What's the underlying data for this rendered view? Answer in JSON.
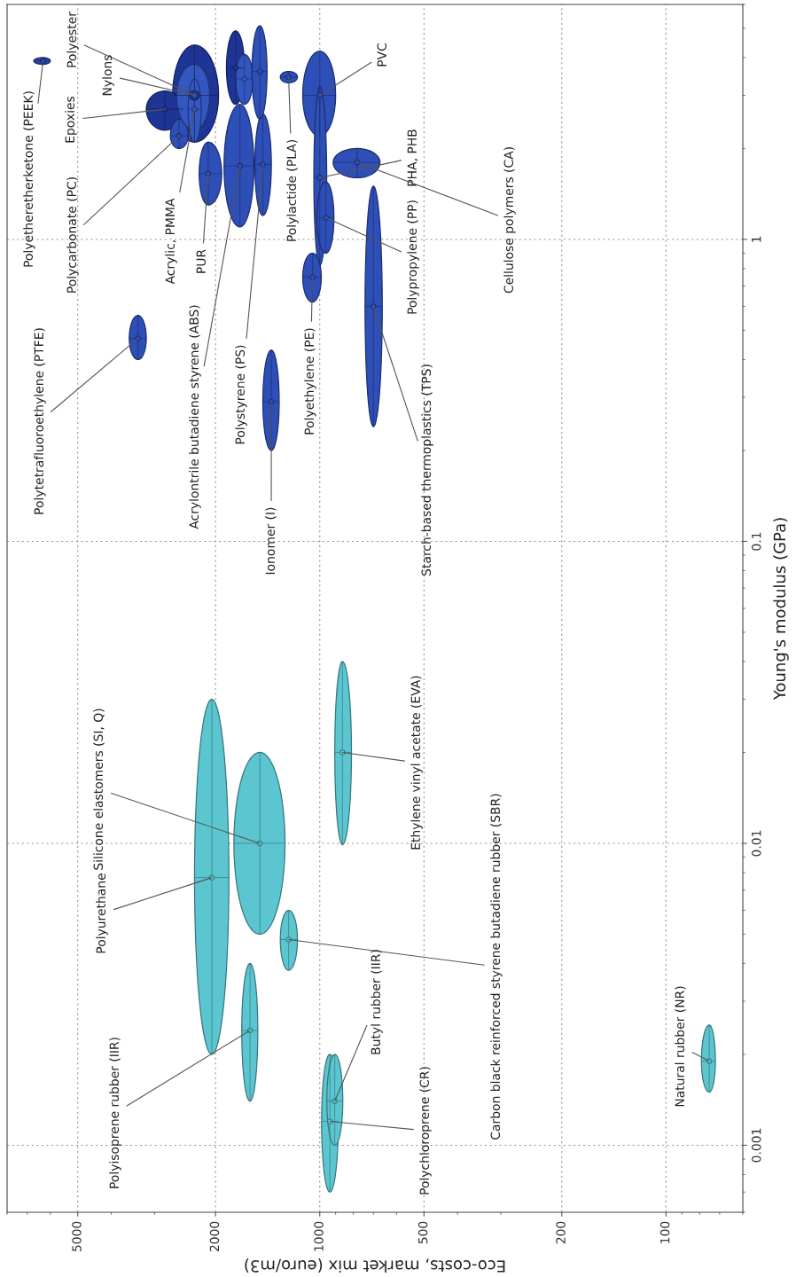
{
  "chart_data": {
    "type": "scatter",
    "xlabel": "Eco-costs, market mix (euro/m3)",
    "ylabel": "Young's modulus (GPa)",
    "log": "xy",
    "grid": true,
    "xlim": [
      8000,
      60
    ],
    "ylim": [
      0.0006,
      6
    ],
    "xticks": [
      5000,
      2000,
      1000,
      500,
      200,
      100
    ],
    "yticks": [
      0.001,
      0.01,
      0.1,
      1
    ],
    "x": [
      6300,
      2300,
      2800,
      2550,
      2300,
      2300,
      2100,
      1700,
      1460,
      1750,
      1650,
      1490,
      1230,
      1000,
      1000,
      960,
      780,
      700,
      1050,
      1380,
      3350,
      2050,
      1490,
      860,
      1230,
      1590,
      935,
      905,
      75
    ],
    "values": [
      3.9,
      3.0,
      2.7,
      2.2,
      3.0,
      2.7,
      1.65,
      1.75,
      1.77,
      3.7,
      3.4,
      3.6,
      3.45,
      3.0,
      1.6,
      1.18,
      1.8,
      0.6,
      0.75,
      0.29,
      0.47,
      0.0077,
      0.01,
      0.02,
      0.0048,
      0.0024,
      0.0012,
      0.0014,
      0.0019
    ],
    "xerrors": [
      [
        6000,
        6700
      ],
      [
        1960,
        2660
      ],
      [
        2480,
        3170
      ],
      [
        2400,
        2700
      ],
      [
        2080,
        2590
      ],
      [
        2200,
        2400
      ],
      [
        1920,
        2230
      ],
      [
        1550,
        1890
      ],
      [
        1380,
        1540
      ],
      [
        1650,
        1860
      ],
      [
        1560,
        1750
      ],
      [
        1420,
        1570
      ],
      [
        1160,
        1300
      ],
      [
        900,
        1120
      ],
      [
        955,
        1040
      ],
      [
        910,
        1020
      ],
      [
        670,
        915
      ],
      [
        660,
        740
      ],
      [
        990,
        1120
      ],
      [
        1310,
        1460
      ],
      [
        3170,
        3550
      ],
      [
        1830,
        2300
      ],
      [
        1260,
        1770
      ],
      [
        810,
        905
      ],
      [
        1160,
        1300
      ],
      [
        1510,
        1680
      ],
      [
        884,
        988
      ],
      [
        858,
        954
      ],
      [
        72,
        79
      ]
    ],
    "errors": [
      [
        3.8,
        4.0
      ],
      [
        2.1,
        4.4
      ],
      [
        2.3,
        3.1
      ],
      [
        2.0,
        2.5
      ],
      [
        2.3,
        3.8
      ],
      [
        2.1,
        3.4
      ],
      [
        1.3,
        2.1
      ],
      [
        1.1,
        2.8
      ],
      [
        1.2,
        2.6
      ],
      [
        2.8,
        4.9
      ],
      [
        2.8,
        4.1
      ],
      [
        2.5,
        5.1
      ],
      [
        3.3,
        3.6
      ],
      [
        2.2,
        4.2
      ],
      [
        0.82,
        3.2
      ],
      [
        0.9,
        1.55
      ],
      [
        1.6,
        2.0
      ],
      [
        0.24,
        1.5
      ],
      [
        0.62,
        0.9
      ],
      [
        0.2,
        0.43
      ],
      [
        0.4,
        0.56
      ],
      [
        0.002,
        0.03
      ],
      [
        0.005,
        0.02
      ],
      [
        0.0099,
        0.04
      ],
      [
        0.0038,
        0.006
      ],
      [
        0.0014,
        0.004
      ],
      [
        0.0007,
        0.002
      ],
      [
        0.001,
        0.002
      ],
      [
        0.0015,
        0.0025
      ]
    ],
    "colors": [
      "#2a47b0",
      "#1f3596",
      "#1f3596",
      "#2e4eb8",
      "#3356c0",
      "#3558c2",
      "#2e4eb8",
      "#2e4eb8",
      "#2e4eb8",
      "#1f3596",
      "#3356c0",
      "#2e4eb8",
      "#2e4eb8",
      "#2e4eb8",
      "#2e4eb8",
      "#2e4eb8",
      "#2e4eb8",
      "#2e4eb8",
      "#2e4eb8",
      "#2e4eb8",
      "#2e4eb8",
      "#5cc6d0",
      "#5cc6d0",
      "#5cc6d0",
      "#5cc6d0",
      "#5cc6d0",
      "#5cc6d0",
      "#5cc6d0",
      "#5cc6d0"
    ],
    "annotations": [
      {
        "text": "Polyetheretherketone (PEEK)",
        "x": 6300,
        "y": 3.9
      },
      {
        "text": "Polyester",
        "x": 2300,
        "y": 3.0
      },
      {
        "text": "Nylons",
        "x": 2300,
        "y": 3.0
      },
      {
        "text": "Epoxies",
        "x": 2800,
        "y": 2.7
      },
      {
        "text": "Polycarbonate (PC)",
        "x": 2550,
        "y": 2.2
      },
      {
        "text": "Acrylic, PMMA",
        "x": 2300,
        "y": 2.7
      },
      {
        "text": "PUR",
        "x": 2100,
        "y": 1.65
      },
      {
        "text": "Acrylontrile butadiene styrene (ABS)",
        "x": 1700,
        "y": 1.75
      },
      {
        "text": "Polystyrene (PS)",
        "x": 1460,
        "y": 1.77
      },
      {
        "text": "Polylactide (PLA)",
        "x": 1230,
        "y": 3.45
      },
      {
        "text": "PVC",
        "x": 1000,
        "y": 3.0
      },
      {
        "text": "PHA, PHB",
        "x": 1000,
        "y": 1.6
      },
      {
        "text": "Polypropylene (PP)",
        "x": 960,
        "y": 1.18
      },
      {
        "text": "Cellulose polymers (CA)",
        "x": 780,
        "y": 1.8
      },
      {
        "text": "Starch-based thermoplastics (TPS)",
        "x": 700,
        "y": 0.6
      },
      {
        "text": "Polyethylene (PE)",
        "x": 1050,
        "y": 0.75
      },
      {
        "text": "Ionomer (I)",
        "x": 1380,
        "y": 0.29
      },
      {
        "text": "Polytetrafluoroethylene (PTFE)",
        "x": 3350,
        "y": 0.47
      },
      {
        "text": "Polyurethane",
        "x": 2050,
        "y": 0.0077
      },
      {
        "text": "Silicone elastomers (SI, Q)",
        "x": 1490,
        "y": 0.01
      },
      {
        "text": "Ethylene vinyl acetate (EVA)",
        "x": 860,
        "y": 0.02
      },
      {
        "text": "Carbon black reinforced styrene butadiene rubber (SBR)",
        "x": 1230,
        "y": 0.0048
      },
      {
        "text": "Polyisoprene rubber (IIR)",
        "x": 1590,
        "y": 0.0024
      },
      {
        "text": "Polychloroprene (CR)",
        "x": 935,
        "y": 0.0012
      },
      {
        "text": "Butyl rubber (IIR)",
        "x": 905,
        "y": 0.0014
      },
      {
        "text": "Natural rubber (NR)",
        "x": 75,
        "y": 0.0019
      }
    ]
  }
}
